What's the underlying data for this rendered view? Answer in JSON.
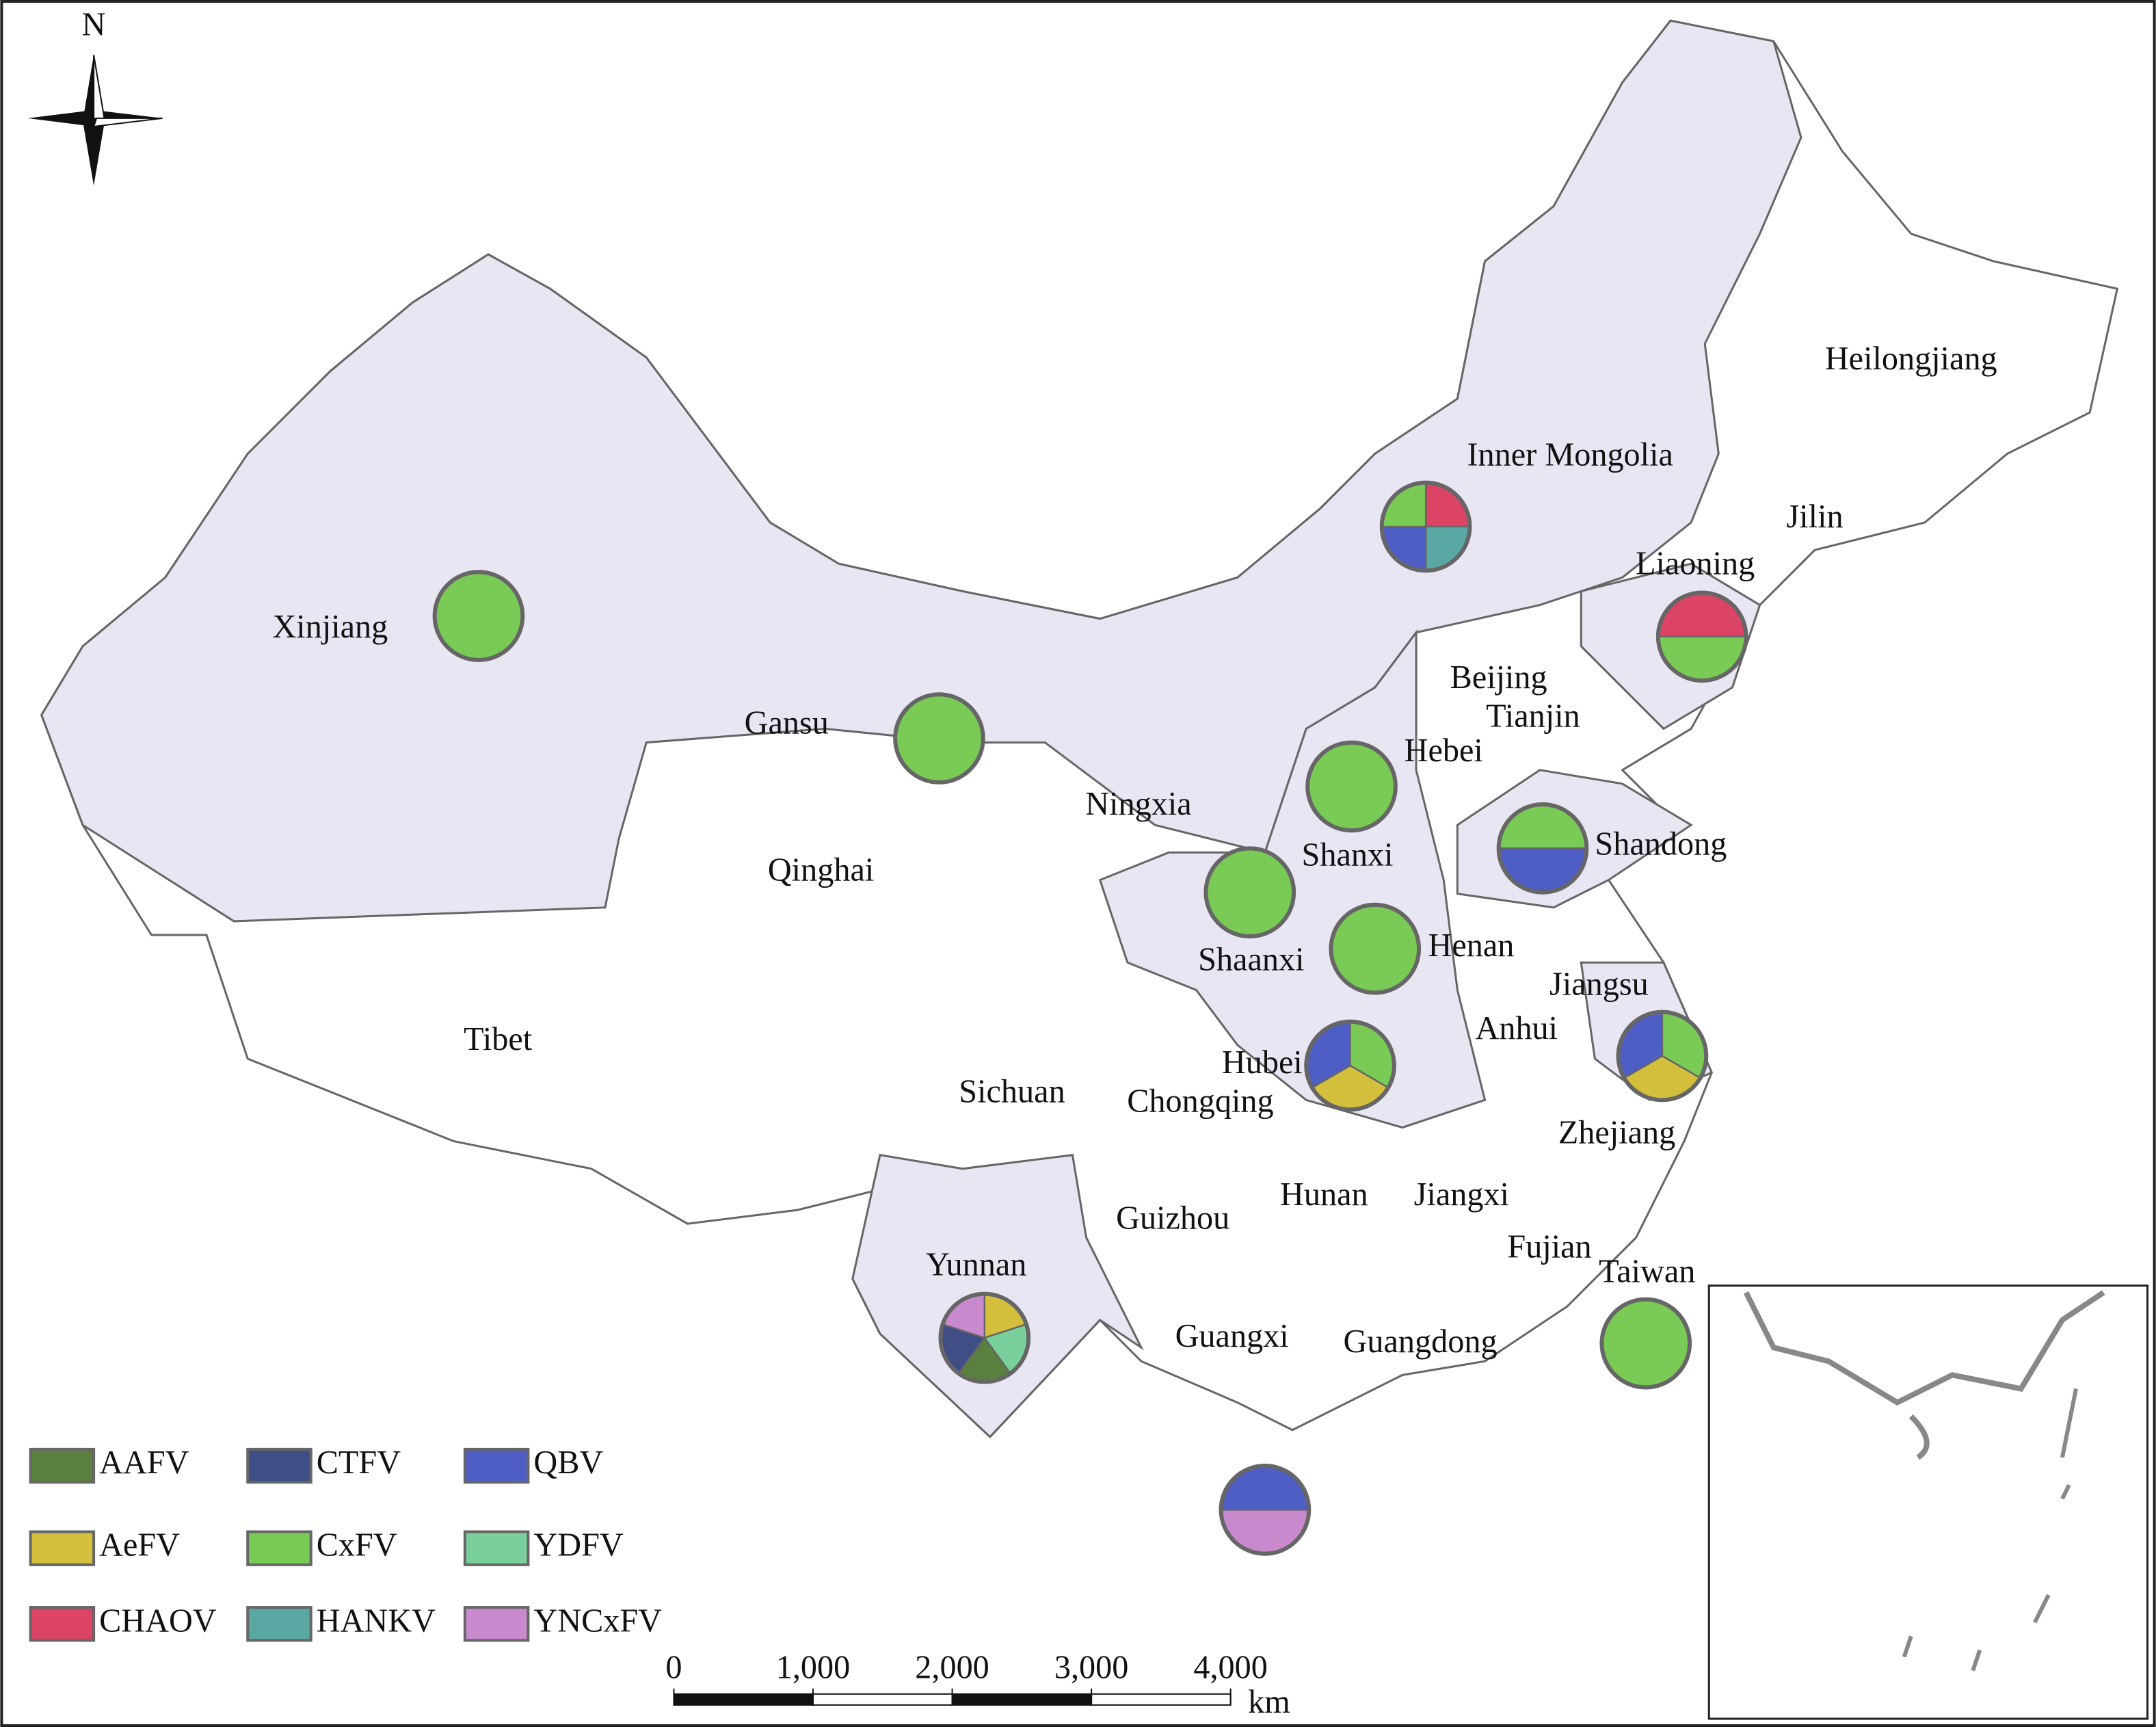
{
  "compass": "N",
  "provinces": [
    "Heilongjiang",
    "Inner Mongolia",
    "Jilin",
    "Liaoning",
    "Xinjiang",
    "Beijing",
    "Tianjin",
    "Gansu",
    "Hebei",
    "Ningxia",
    "Shandong",
    "Shanxi",
    "Qinghai",
    "Shaanxi",
    "Henan",
    "Jiangsu",
    "Tibet",
    "Anhui",
    "Hubei",
    "Sichuan",
    "Chongqing",
    "Zhejiang",
    "Hunan",
    "Jiangxi",
    "Guizhou",
    "Fujian",
    "Yunnan",
    "Taiwan",
    "Guangxi",
    "Guangdong"
  ],
  "legend": [
    {
      "name": "AAFV",
      "color": "#5a8040"
    },
    {
      "name": "AeFV",
      "color": "#d4bf3c"
    },
    {
      "name": "CHAOV",
      "color": "#dc4466"
    },
    {
      "name": "CTFV",
      "color": "#3f4f86"
    },
    {
      "name": "CxFV",
      "color": "#7acb55"
    },
    {
      "name": "HANKV",
      "color": "#5aa8a4"
    },
    {
      "name": "QBV",
      "color": "#4f5ec4"
    },
    {
      "name": "YDFV",
      "color": "#79d09a"
    },
    {
      "name": "YNCxFV",
      "color": "#c98acd"
    }
  ],
  "pies": [
    {
      "viruses": [
        "CxFV"
      ]
    },
    {
      "viruses": [
        "CxFV"
      ]
    },
    {
      "viruses": [
        "CHAOV",
        "HANKV",
        "QBV",
        "CxFV"
      ]
    },
    {
      "viruses": [
        "CHAOV",
        "CxFV"
      ]
    },
    {
      "viruses": [
        "CxFV"
      ]
    },
    {
      "viruses": [
        "CxFV",
        "QBV"
      ]
    },
    {
      "viruses": [
        "CxFV"
      ]
    },
    {
      "viruses": [
        "CxFV"
      ]
    },
    {
      "viruses": [
        "CxFV",
        "AeFV",
        "QBV"
      ]
    },
    {
      "viruses": [
        "CxFV",
        "AeFV",
        "QBV"
      ]
    },
    {
      "viruses": [
        "AeFV",
        "YDFV",
        "AAFV",
        "CTFV",
        "YNCxFV"
      ]
    },
    {
      "viruses": [
        "CxFV"
      ]
    },
    {
      "viruses": [
        "QBV",
        "YNCxFV"
      ]
    }
  ],
  "scale_bar": {
    "ticks": [
      {
        "value": 0,
        "label": "0"
      },
      {
        "value": 1000,
        "label": "1,000"
      },
      {
        "value": 2000,
        "label": "2,000"
      },
      {
        "value": 3000,
        "label": "3,000"
      },
      {
        "value": 4000,
        "label": "4,000"
      }
    ],
    "unit": "km"
  }
}
